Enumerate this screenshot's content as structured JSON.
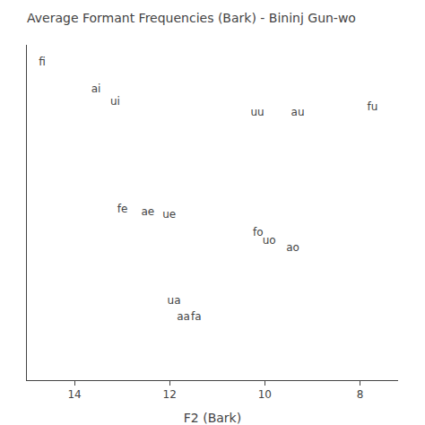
{
  "chart_data": {
    "type": "scatter",
    "title": "Average Formant Frequencies (Bark) - Bininj Gun-wo",
    "xlabel": "F2 (Bark)",
    "x": [
      14.75,
      13.65,
      13.25,
      10.3,
      9.45,
      7.85,
      13.1,
      12.6,
      12.15,
      10.25,
      10.05,
      9.55,
      12.05,
      11.85,
      11.55
    ],
    "values": [
      7.85,
      7.35,
      7.1,
      6.9,
      6.9,
      7.0,
      5.05,
      5.0,
      4.95,
      4.6,
      4.45,
      4.32,
      3.3,
      3.0,
      3.0
    ],
    "labels": [
      "fi",
      "ai",
      "ui",
      "uu",
      "au",
      "fu",
      "fe",
      "ae",
      "ue",
      "fo",
      "uo",
      "ao",
      "ua",
      "aa",
      "fa"
    ],
    "xlim": [
      15.0,
      7.2
    ],
    "xticks": [
      14,
      12,
      10,
      8
    ],
    "ylim": [
      1.8,
      8.2
    ],
    "tick_labels": "x",
    "grid": false
  }
}
